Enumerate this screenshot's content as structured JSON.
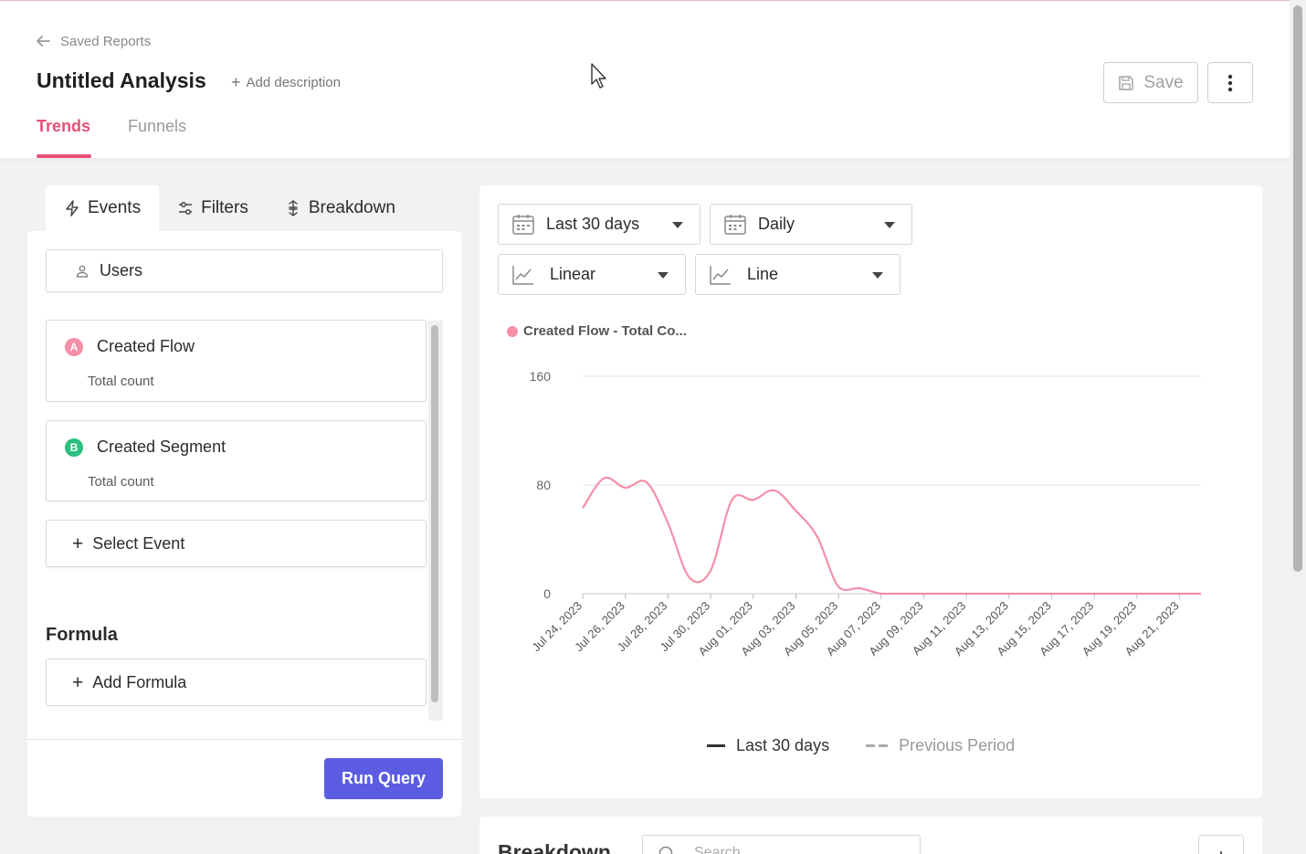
{
  "header": {
    "back_label": "Saved Reports",
    "title": "Untitled Analysis",
    "add_description": "Add description",
    "save_label": "Save",
    "tabs": [
      {
        "label": "Trends",
        "active": true
      },
      {
        "label": "Funnels",
        "active": false
      }
    ]
  },
  "left": {
    "subtabs": [
      {
        "label": "Events",
        "icon": "bolt-icon"
      },
      {
        "label": "Filters",
        "icon": "sliders-icon"
      },
      {
        "label": "Breakdown",
        "icon": "breakdown-icon"
      }
    ],
    "users_label": "Users",
    "events": [
      {
        "letter": "A",
        "name": "Created Flow",
        "metric": "Total count",
        "color": "#f58fa8"
      },
      {
        "letter": "B",
        "name": "Created Segment",
        "metric": "Total count",
        "color": "#2bc07e"
      }
    ],
    "select_event": "Select Event",
    "formula_heading": "Formula",
    "add_formula": "Add Formula",
    "run_query": "Run Query"
  },
  "controls": {
    "date_range": "Last 30 days",
    "interval": "Daily",
    "scale": "Linear",
    "chart_type": "Line"
  },
  "chart_legend": {
    "series_label": "Created Flow - Total Co...",
    "series_color": "#f58fa8",
    "current_label": "Last 30 days",
    "previous_label": "Previous Period"
  },
  "chart_data": {
    "type": "line",
    "ylim": [
      0,
      160
    ],
    "yticks": [
      0,
      80,
      160
    ],
    "x_tick_labels": [
      "Jul 24, 2023",
      "Jul 26, 2023",
      "Jul 28, 2023",
      "Jul 30, 2023",
      "Aug 01, 2023",
      "Aug 03, 2023",
      "Aug 05, 2023",
      "Aug 07, 2023",
      "Aug 09, 2023",
      "Aug 11, 2023",
      "Aug 13, 2023",
      "Aug 15, 2023",
      "Aug 17, 2023",
      "Aug 19, 2023",
      "Aug 21, 2023"
    ],
    "x": [
      "Jul 24, 2023",
      "Jul 25, 2023",
      "Jul 26, 2023",
      "Jul 27, 2023",
      "Jul 28, 2023",
      "Jul 29, 2023",
      "Jul 30, 2023",
      "Jul 31, 2023",
      "Aug 01, 2023",
      "Aug 02, 2023",
      "Aug 03, 2023",
      "Aug 04, 2023",
      "Aug 05, 2023",
      "Aug 06, 2023",
      "Aug 07, 2023",
      "Aug 08, 2023",
      "Aug 09, 2023",
      "Aug 10, 2023",
      "Aug 11, 2023",
      "Aug 12, 2023",
      "Aug 13, 2023",
      "Aug 14, 2023",
      "Aug 15, 2023",
      "Aug 16, 2023",
      "Aug 17, 2023",
      "Aug 18, 2023",
      "Aug 19, 2023",
      "Aug 20, 2023",
      "Aug 21, 2023",
      "Aug 22, 2023"
    ],
    "series": [
      {
        "values": [
          63,
          85,
          78,
          82,
          52,
          12,
          17,
          69,
          69,
          76,
          61,
          42,
          5,
          4,
          0,
          0,
          0,
          0,
          0,
          0,
          0,
          0,
          0,
          0,
          0,
          0,
          0,
          0,
          0,
          0
        ]
      }
    ]
  },
  "breakdown": {
    "title": "Breakdown",
    "search_placeholder": "Search"
  }
}
